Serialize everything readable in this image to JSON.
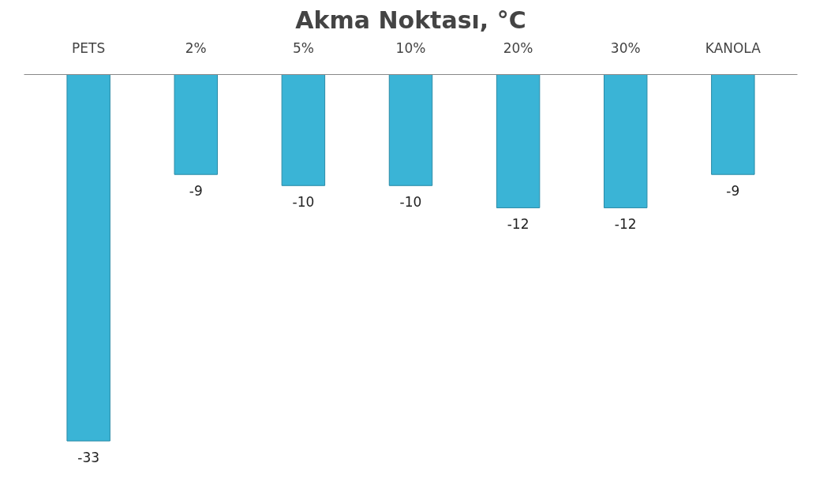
{
  "chart_data": {
    "type": "bar",
    "title": "Akma Noktası, °C",
    "categories": [
      "PETS",
      "2%",
      "5%",
      "10%",
      "20%",
      "30%",
      "KANOLA"
    ],
    "values": [
      -33,
      -9,
      -10,
      -10,
      -12,
      -12,
      -9
    ],
    "color": "#3ab4d6",
    "data_labels": true
  }
}
